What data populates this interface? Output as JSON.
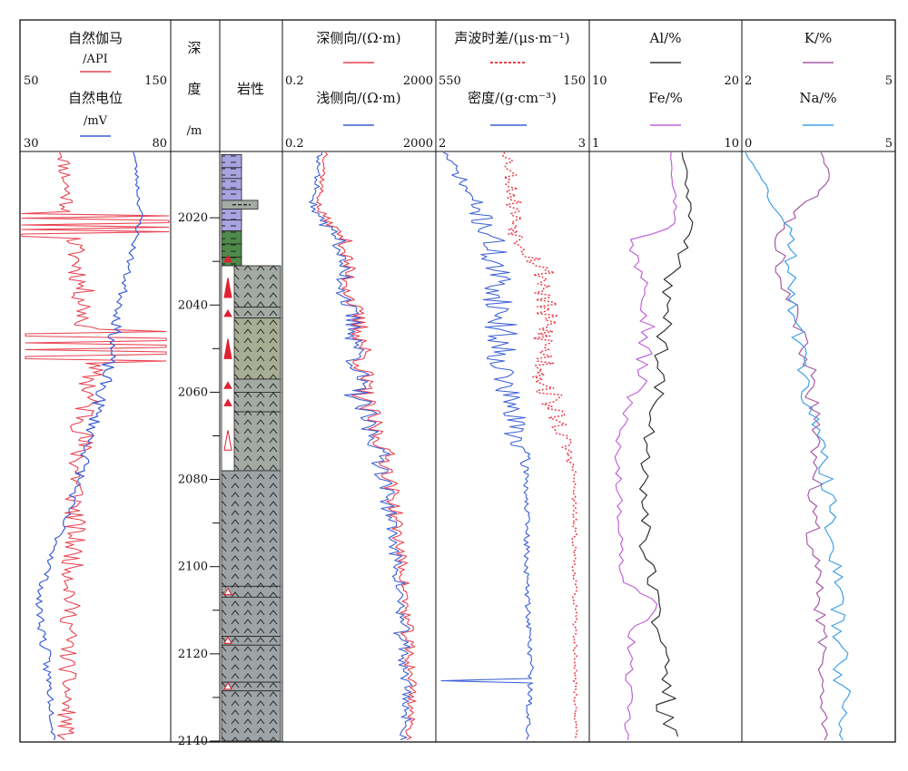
{
  "depth": {
    "title": [
      "深",
      "度",
      "/m"
    ],
    "ticks": [
      2020,
      2040,
      2060,
      2080,
      2100,
      2120,
      2140
    ],
    "range": [
      2005,
      2140
    ]
  },
  "lithology": {
    "title": "岩性",
    "intervals": [
      {
        "top": 2005.5,
        "base": 2008.5,
        "type": "mudstone",
        "color": "#a9a3e0"
      },
      {
        "top": 2008.5,
        "base": 2011.0,
        "type": "mudstone",
        "color": "#a9a3e0"
      },
      {
        "top": 2011.0,
        "base": 2013.5,
        "type": "mudstone",
        "color": "#a9a3e0"
      },
      {
        "top": 2013.5,
        "base": 2016.0,
        "type": "mudstone",
        "color": "#a9a3e0"
      },
      {
        "top": 2016.0,
        "base": 2018.0,
        "type": "mudstone",
        "color": "#a9a3e0"
      },
      {
        "top": 2018.0,
        "base": 2020.5,
        "type": "mudstone",
        "color": "#a9a3e0"
      },
      {
        "top": 2020.5,
        "base": 2023.0,
        "type": "mudstone",
        "color": "#a9a3e0"
      },
      {
        "top": 2023.0,
        "base": 2026.0,
        "type": "green-mudstone",
        "color": "#4f8a4a"
      },
      {
        "top": 2026.0,
        "base": 2029.0,
        "type": "green-mudstone",
        "color": "#4f8a4a"
      },
      {
        "top": 2029.0,
        "base": 2031.0,
        "type": "green-mudstone",
        "color": "#4f8a4a"
      },
      {
        "top": 2031.0,
        "base": 2040.5,
        "type": "volcanic",
        "color": "#a3aaa4"
      },
      {
        "top": 2040.5,
        "base": 2043.0,
        "type": "volcanic",
        "color": "#a3aaa4"
      },
      {
        "top": 2043.0,
        "base": 2057.0,
        "type": "volcanic-altered",
        "color": "#a7ae93"
      },
      {
        "top": 2057.0,
        "base": 2060.0,
        "type": "volcanic",
        "color": "#a3aaa4"
      },
      {
        "top": 2060.0,
        "base": 2064.5,
        "type": "volcanic",
        "color": "#a3aaa4"
      },
      {
        "top": 2064.5,
        "base": 2078.0,
        "type": "volcanic",
        "color": "#a3aaa4"
      },
      {
        "top": 2078.0,
        "base": 2104.5,
        "type": "volcanic",
        "color": "#9ea3a6"
      },
      {
        "top": 2104.5,
        "base": 2107.0,
        "type": "volcanic",
        "color": "#9ea3a6"
      },
      {
        "top": 2107.0,
        "base": 2116.0,
        "type": "volcanic",
        "color": "#9ea3a6"
      },
      {
        "top": 2116.0,
        "base": 2118.0,
        "type": "volcanic",
        "color": "#9ea3a6"
      },
      {
        "top": 2118.0,
        "base": 2126.5,
        "type": "volcanic",
        "color": "#9ea3a6"
      },
      {
        "top": 2126.5,
        "base": 2128.5,
        "type": "volcanic",
        "color": "#9ea3a6"
      },
      {
        "top": 2128.5,
        "base": 2140.0,
        "type": "volcanic",
        "color": "#9ea3a6"
      }
    ],
    "markers": [
      {
        "depth": 2029.5,
        "kind": "small-filled"
      },
      {
        "depth": 2036.0,
        "kind": "large-filled"
      },
      {
        "depth": 2042.0,
        "kind": "small-filled"
      },
      {
        "depth": 2050.0,
        "kind": "large-filled"
      },
      {
        "depth": 2058.5,
        "kind": "small-filled"
      },
      {
        "depth": 2062.5,
        "kind": "small-filled"
      },
      {
        "depth": 2071.0,
        "kind": "large-open"
      },
      {
        "depth": 2105.8,
        "kind": "small-open"
      },
      {
        "depth": 2117.0,
        "kind": "small-open"
      },
      {
        "depth": 2127.5,
        "kind": "small-open"
      }
    ]
  },
  "tracks": [
    {
      "curves": [
        {
          "label": "自然伽马",
          "unit": "/API",
          "min": "50",
          "max": "150",
          "color": "#e8414f",
          "style": "solid"
        },
        {
          "label": "自然电位",
          "unit": "/mV",
          "min": "30",
          "max": "80",
          "color": "#3b5fd6",
          "style": "solid"
        }
      ]
    },
    {
      "curves": [
        {
          "label": "深侧向/(Ω·m)",
          "unit": "",
          "min": "0.2",
          "max": "2000",
          "color": "#e8414f",
          "style": "solid"
        },
        {
          "label": "浅侧向/(Ω·m)",
          "unit": "",
          "min": "0.2",
          "max": "2000",
          "color": "#3b5fd6",
          "style": "solid"
        }
      ]
    },
    {
      "curves": [
        {
          "label": "声波时差/(μs·m⁻¹)",
          "unit": "",
          "min": "550",
          "max": "150",
          "color": "#e8414f",
          "style": "dotted"
        },
        {
          "label": "密度/(g·cm⁻³)",
          "unit": "",
          "min": "2",
          "max": "3",
          "color": "#3b5fd6",
          "style": "solid"
        }
      ]
    },
    {
      "curves": [
        {
          "label": "Al/%",
          "unit": "",
          "min": "10",
          "max": "20",
          "color": "#333333",
          "style": "solid"
        },
        {
          "label": "Fe/%",
          "unit": "",
          "min": "1",
          "max": "10",
          "color": "#c064d8",
          "style": "solid"
        }
      ]
    },
    {
      "curves": [
        {
          "label": "K/%",
          "unit": "",
          "min": "2",
          "max": "5",
          "color": "#a65aa6",
          "style": "solid"
        },
        {
          "label": "Na/%",
          "unit": "",
          "min": "0",
          "max": "5",
          "color": "#3ea0e6",
          "style": "solid"
        }
      ]
    }
  ]
}
